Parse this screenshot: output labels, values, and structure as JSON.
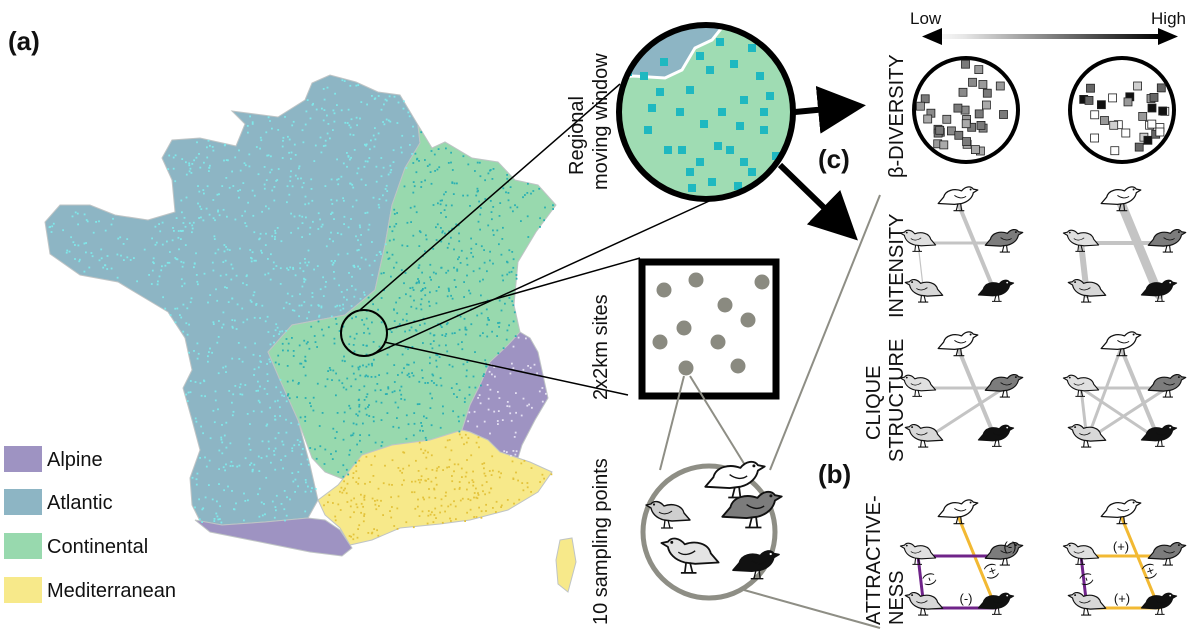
{
  "panels": {
    "a": "(a)",
    "b": "(b)",
    "c": "(c)"
  },
  "legend": [
    {
      "label": "Alpine",
      "color": "#9e93c2"
    },
    {
      "label": "Atlantic",
      "color": "#8db5c4"
    },
    {
      "label": "Continental",
      "color": "#98d9ae"
    },
    {
      "label": "Mediterranean",
      "color": "#f7e98a"
    }
  ],
  "labels": {
    "regional_line1": "Regional",
    "regional_line2": "moving window",
    "sites": "2x2km sites",
    "points": "10 sampling points",
    "low": "Low",
    "high": "High"
  },
  "metrics": [
    {
      "line1": "β-DIVERSITY",
      "line2": ""
    },
    {
      "line1": "INTENSITY",
      "line2": ""
    },
    {
      "line1": "CLIQUE",
      "line2": "STRUCTURE"
    },
    {
      "line1": "ATTRACTIVE-",
      "line2": "NESS"
    }
  ],
  "signs": {
    "low": [
      "(-)",
      "(-)",
      "(+)",
      "(-)"
    ],
    "high": [
      "(+)",
      "(-)",
      "(+)",
      "(+)"
    ]
  },
  "colors": {
    "atlantic_dots": "#7fe8ea",
    "continental_dots": "#2ab0b2",
    "mediterranean_dots": "#e3c23a",
    "window_points": "#1fb8c0",
    "site_points": "#8a8a80",
    "negative": "#6f2389",
    "positive": "#f2b933"
  }
}
